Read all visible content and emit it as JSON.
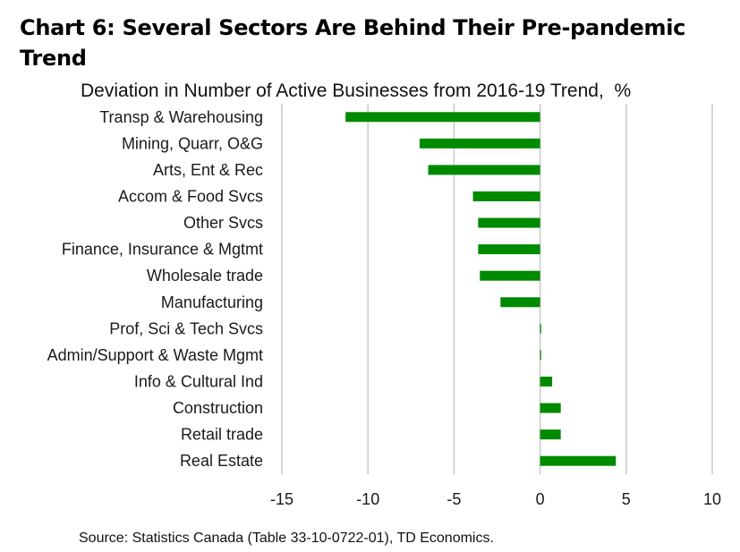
{
  "title": "Chart 6: Several Sectors Are Behind Their Pre-pandemic Trend",
  "source": "Source: Statistics Canada (Table 33-10-0722-01), TD Economics.",
  "chart_data": {
    "type": "bar",
    "orientation": "horizontal",
    "title": "Chart 6: Several Sectors Are Behind Their Pre-pandemic Trend",
    "subtitle": "Deviation in Number of Active Businesses from 2016-19 Trend,  %",
    "xlabel": "",
    "ylabel": "",
    "xlim": [
      -15,
      10
    ],
    "xticks": [
      -15,
      -10,
      -5,
      0,
      5,
      10
    ],
    "grid": true,
    "bar_color": "#008a00",
    "categories": [
      "Transp & Warehousing",
      "Mining, Quarr, O&G",
      "Arts, Ent & Rec",
      "Accom & Food Svcs",
      "Other Svcs",
      "Finance, Insurance & Mgtmt",
      "Wholesale trade",
      "Manufacturing",
      "Prof, Sci & Tech Svcs",
      "Admin/Support & Waste Mgmt",
      "Info & Cultural Ind",
      "Construction",
      "Retail trade",
      "Real Estate"
    ],
    "values": [
      -11.3,
      -7.0,
      -6.5,
      -3.9,
      -3.6,
      -3.6,
      -3.5,
      -2.3,
      0.05,
      0.05,
      0.7,
      1.2,
      1.2,
      4.4
    ]
  }
}
